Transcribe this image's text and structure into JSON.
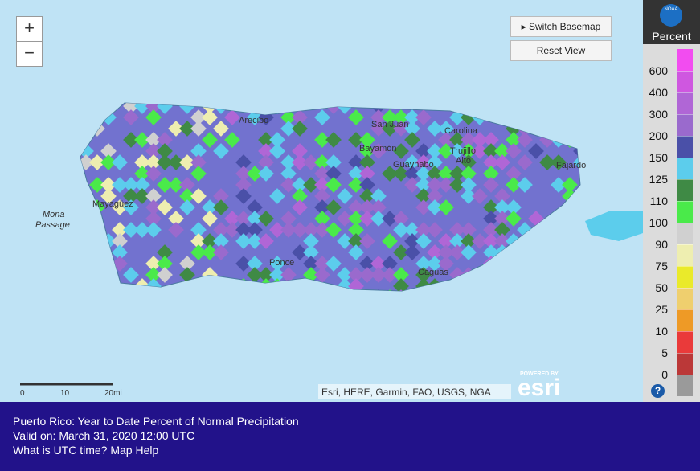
{
  "map": {
    "zoom_in": "+",
    "zoom_out": "−",
    "buttons": [
      "Switch Basemap",
      "Reset View"
    ],
    "labels": {
      "arecibo": "Arecibo",
      "san_juan": "San Juan",
      "carolina": "Carolina",
      "bayamon": "Bayamón",
      "trujillo": "Trujillo",
      "alto": "Alto",
      "guaynabo": "Guaynabo",
      "fajardo": "Fajardo",
      "mayaguez": "Mayagüez",
      "mona": "Mona",
      "passage": "Passage",
      "ponce": "Ponce",
      "caguas": "Caguas"
    },
    "scale": [
      "0",
      "10",
      "20mi"
    ],
    "attribution": "Esri, HERE, Garmin, FAO, USGS, NGA",
    "powered_by": "POWERED BY",
    "esri": "esri"
  },
  "legend": {
    "logo": "NOAA",
    "title": "Percent",
    "top_color": "#f24cf0",
    "items": [
      {
        "label": "600",
        "color": "#cf57e0"
      },
      {
        "label": "400",
        "color": "#b066d6"
      },
      {
        "label": "300",
        "color": "#9a6acd"
      },
      {
        "label": "200",
        "color": "#4a50a8"
      },
      {
        "label": "150",
        "color": "#5ccdec"
      },
      {
        "label": "125",
        "color": "#3f8a45"
      },
      {
        "label": "110",
        "color": "#4aea4a"
      },
      {
        "label": "100",
        "color": "#d0d0d0"
      },
      {
        "label": "90",
        "color": "#eeeeb0"
      },
      {
        "label": "75",
        "color": "#eaea2a"
      },
      {
        "label": "50",
        "color": "#efcf6e"
      },
      {
        "label": "25",
        "color": "#ee9a26"
      },
      {
        "label": "10",
        "color": "#ea3a3a"
      },
      {
        "label": "5",
        "color": "#bb3838"
      },
      {
        "label": "0",
        "color": "#9a9a9a"
      }
    ],
    "help": "?"
  },
  "footer": {
    "title": "Puerto Rico: Year to Date Percent of Normal Precipitation",
    "valid": "Valid on: March 31, 2020 12:00 UTC",
    "links": [
      "What is UTC time?",
      "Map Help"
    ]
  }
}
